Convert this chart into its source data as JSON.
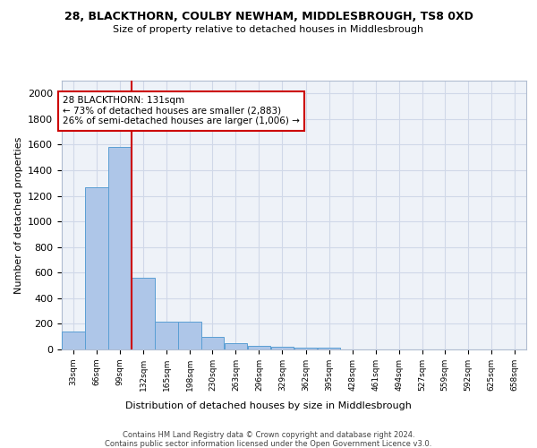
{
  "title1": "28, BLACKTHORN, COULBY NEWHAM, MIDDLESBROUGH, TS8 0XD",
  "title2": "Size of property relative to detached houses in Middlesbrough",
  "xlabel": "Distribution of detached houses by size in Middlesbrough",
  "ylabel": "Number of detached properties",
  "footer1": "Contains HM Land Registry data © Crown copyright and database right 2024.",
  "footer2": "Contains public sector information licensed under the Open Government Licence v3.0.",
  "annotation_title": "28 BLACKTHORN: 131sqm",
  "annotation_line1": "← 73% of detached houses are smaller (2,883)",
  "annotation_line2": "26% of semi-detached houses are larger (1,006) →",
  "property_size": 131,
  "bar_edges": [
    33,
    66,
    99,
    132,
    165,
    198,
    230,
    263,
    296,
    329,
    362,
    395,
    428,
    461,
    494,
    527,
    559,
    592,
    625,
    658,
    691
  ],
  "bar_heights": [
    140,
    1270,
    1580,
    560,
    220,
    220,
    95,
    50,
    30,
    20,
    15,
    15,
    0,
    0,
    0,
    0,
    0,
    0,
    0,
    0
  ],
  "bar_color": "#aec6e8",
  "bar_edgecolor": "#5a9fd4",
  "vline_color": "#cc0000",
  "vline_x": 132,
  "annotation_box_color": "#cc0000",
  "grid_color": "#d0d8e8",
  "background_color": "#eef2f8",
  "ylim": [
    0,
    2100
  ],
  "yticks": [
    0,
    200,
    400,
    600,
    800,
    1000,
    1200,
    1400,
    1600,
    1800,
    2000
  ]
}
